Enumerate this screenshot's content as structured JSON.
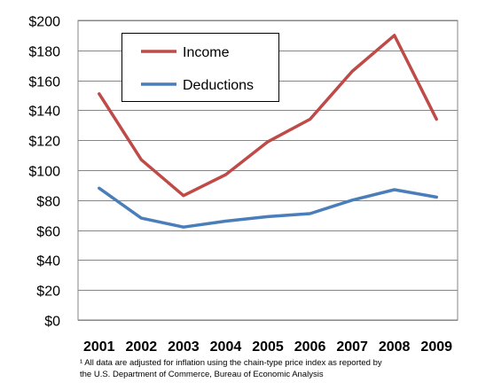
{
  "chart_data": {
    "type": "line",
    "title": "",
    "xlabel": "",
    "ylabel": "",
    "categories": [
      "2001",
      "2002",
      "2003",
      "2004",
      "2005",
      "2006",
      "2007",
      "2008",
      "2009"
    ],
    "series": [
      {
        "name": "Income",
        "color": "#BE4B48",
        "values": [
          151,
          107,
          83,
          97,
          119,
          134,
          166,
          190,
          134
        ]
      },
      {
        "name": "Deductions",
        "color": "#4A7EBB",
        "values": [
          88,
          68,
          62,
          66,
          69,
          71,
          80,
          87,
          82
        ]
      }
    ],
    "ylim": [
      0,
      200
    ],
    "y_ticks": [
      0,
      20,
      40,
      60,
      80,
      100,
      120,
      140,
      160,
      180,
      200
    ],
    "y_tick_labels": [
      "$0",
      "$20",
      "$40",
      "$60",
      "$80",
      "$100",
      "$120",
      "$140",
      "$160",
      "$180",
      "$200"
    ],
    "grid": true,
    "legend_position": "top-left"
  },
  "footnote": {
    "line1": "¹ All data are adjusted for inflation using the chain-type price index as reported by",
    "line2": "the U.S. Department of Commerce, Bureau of Economic Analysis"
  }
}
